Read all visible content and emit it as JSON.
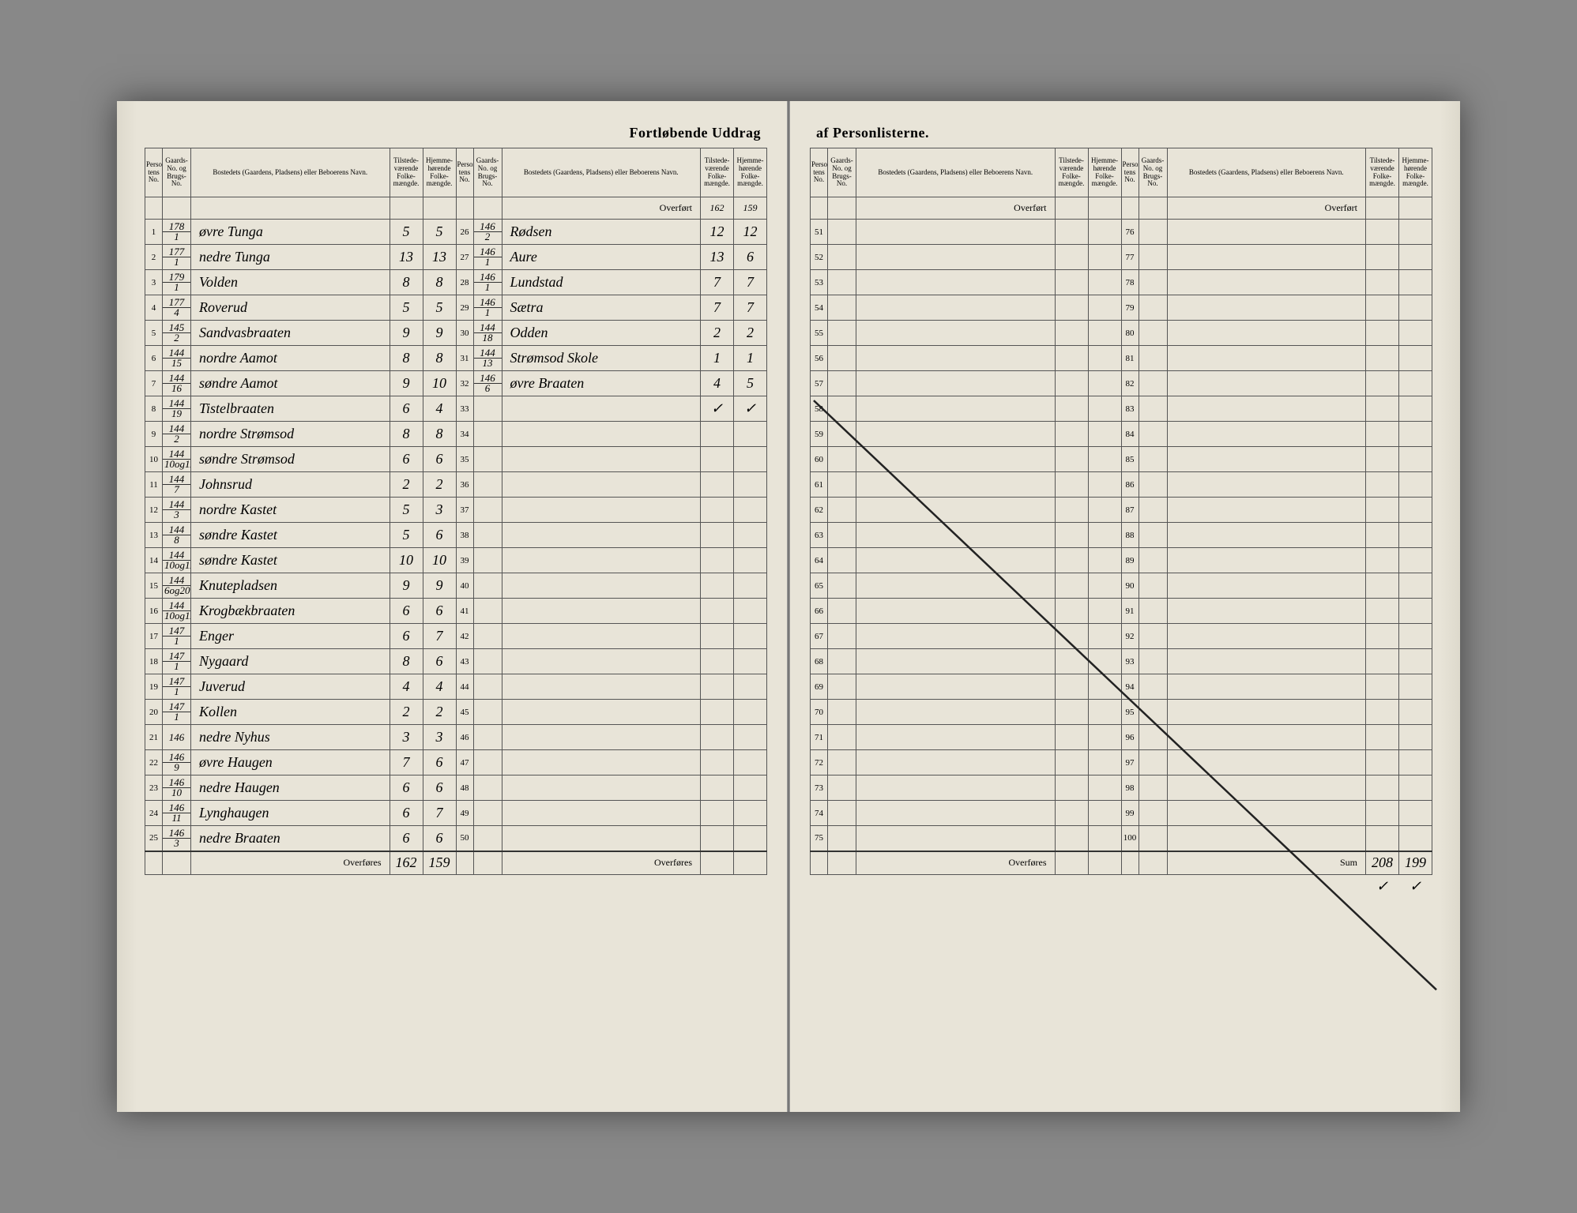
{
  "title_left": "Fortløbende Uddrag",
  "title_right": "af Personlisterne.",
  "headers": {
    "personlist_no": "Personlis-\ntens No.",
    "gaard_no": "Gaards-\nNo.\nog\nBrugs-\nNo.",
    "bosted": "Bostedets (Gaardens, Pladsens) eller\nBeboerens Navn.",
    "tilstede": "Tilstede-\nværende\nFolke-\nmængde.",
    "hjemme": "Hjemme-\nhørende\nFolke-\nmængde."
  },
  "overfort_label": "Overført",
  "overfores_label": "Overføres",
  "sum_label": "Sum",
  "left_block1": [
    {
      "n": "1",
      "g": "178/1",
      "name": "øvre Tunga",
      "t": "5",
      "h": "5"
    },
    {
      "n": "2",
      "g": "177/1",
      "name": "nedre Tunga",
      "t": "13",
      "h": "13"
    },
    {
      "n": "3",
      "g": "179/1",
      "name": "Volden",
      "t": "8",
      "h": "8"
    },
    {
      "n": "4",
      "g": "177/4",
      "name": "Roverud",
      "t": "5",
      "h": "5"
    },
    {
      "n": "5",
      "g": "145/2",
      "name": "Sandvasbraaten",
      "t": "9",
      "h": "9"
    },
    {
      "n": "6",
      "g": "144/15",
      "name": "nordre Aamot",
      "t": "8",
      "h": "8"
    },
    {
      "n": "7",
      "g": "144/16",
      "name": "søndre Aamot",
      "t": "9",
      "h": "10"
    },
    {
      "n": "8",
      "g": "144/19",
      "name": "Tistelbraaten",
      "t": "6",
      "h": "4"
    },
    {
      "n": "9",
      "g": "144/2",
      "name": "nordre Strømsod",
      "t": "8",
      "h": "8"
    },
    {
      "n": "10",
      "g": "144/10og11",
      "name": "søndre Strømsod",
      "t": "6",
      "h": "6"
    },
    {
      "n": "11",
      "g": "144/7",
      "name": "Johnsrud",
      "t": "2",
      "h": "2"
    },
    {
      "n": "12",
      "g": "144/3",
      "name": "nordre Kastet",
      "t": "5",
      "h": "3"
    },
    {
      "n": "13",
      "g": "144/8",
      "name": "søndre Kastet",
      "t": "5",
      "h": "6"
    },
    {
      "n": "14",
      "g": "144/10og11",
      "name": "søndre Kastet",
      "t": "10",
      "h": "10"
    },
    {
      "n": "15",
      "g": "144/6og20",
      "name": "Knutepladsen",
      "t": "9",
      "h": "9"
    },
    {
      "n": "16",
      "g": "144/10og11",
      "name": "Krogbækbraaten",
      "t": "6",
      "h": "6"
    },
    {
      "n": "17",
      "g": "147/1",
      "name": "Enger",
      "t": "6",
      "h": "7"
    },
    {
      "n": "18",
      "g": "147/1",
      "name": "Nygaard",
      "t": "8",
      "h": "6"
    },
    {
      "n": "19",
      "g": "147/1",
      "name": "Juverud",
      "t": "4",
      "h": "4"
    },
    {
      "n": "20",
      "g": "147/1",
      "name": "Kollen",
      "t": "2",
      "h": "2"
    },
    {
      "n": "21",
      "g": "146",
      "name": "nedre Nyhus",
      "t": "3",
      "h": "3"
    },
    {
      "n": "22",
      "g": "146/9",
      "name": "øvre Haugen",
      "t": "7",
      "h": "6"
    },
    {
      "n": "23",
      "g": "146/10",
      "name": "nedre Haugen",
      "t": "6",
      "h": "6"
    },
    {
      "n": "24",
      "g": "146/11",
      "name": "Lynghaugen",
      "t": "6",
      "h": "7"
    },
    {
      "n": "25",
      "g": "146/3",
      "name": "nedre Braaten",
      "t": "6",
      "h": "6"
    }
  ],
  "left_sum": {
    "t": "162",
    "h": "159"
  },
  "left_block2_overfort": {
    "t": "162",
    "h": "159"
  },
  "left_block2": [
    {
      "n": "26",
      "g": "146/2",
      "name": "Rødsen",
      "t": "12",
      "h": "12"
    },
    {
      "n": "27",
      "g": "146/1",
      "name": "Aure",
      "t": "13",
      "h": "6"
    },
    {
      "n": "28",
      "g": "146/1",
      "name": "Lundstad",
      "t": "7",
      "h": "7"
    },
    {
      "n": "29",
      "g": "146/1",
      "name": "Sætra",
      "t": "7",
      "h": "7"
    },
    {
      "n": "30",
      "g": "144/18",
      "name": "Odden",
      "t": "2",
      "h": "2"
    },
    {
      "n": "31",
      "g": "144/13",
      "name": "Strømsod Skole",
      "t": "1",
      "h": "1"
    },
    {
      "n": "32",
      "g": "146/6",
      "name": "øvre Braaten",
      "t": "4",
      "h": "5"
    }
  ],
  "left_block2_check": {
    "t": "✓",
    "h": "✓"
  },
  "right_rows_a": [
    "51",
    "52",
    "53",
    "54",
    "55",
    "56",
    "57",
    "58",
    "59",
    "60",
    "61",
    "62",
    "63",
    "64",
    "65",
    "66",
    "67",
    "68",
    "69",
    "70",
    "71",
    "72",
    "73",
    "74",
    "75"
  ],
  "right_rows_b": [
    "76",
    "77",
    "78",
    "79",
    "80",
    "81",
    "82",
    "83",
    "84",
    "85",
    "86",
    "87",
    "88",
    "89",
    "90",
    "91",
    "92",
    "93",
    "94",
    "95",
    "96",
    "97",
    "98",
    "99",
    "100"
  ],
  "final_sum": {
    "t": "208",
    "h": "199"
  },
  "colors": {
    "paper": "#e8e4d8",
    "line": "#555555",
    "ink": "#2a2a2a"
  }
}
